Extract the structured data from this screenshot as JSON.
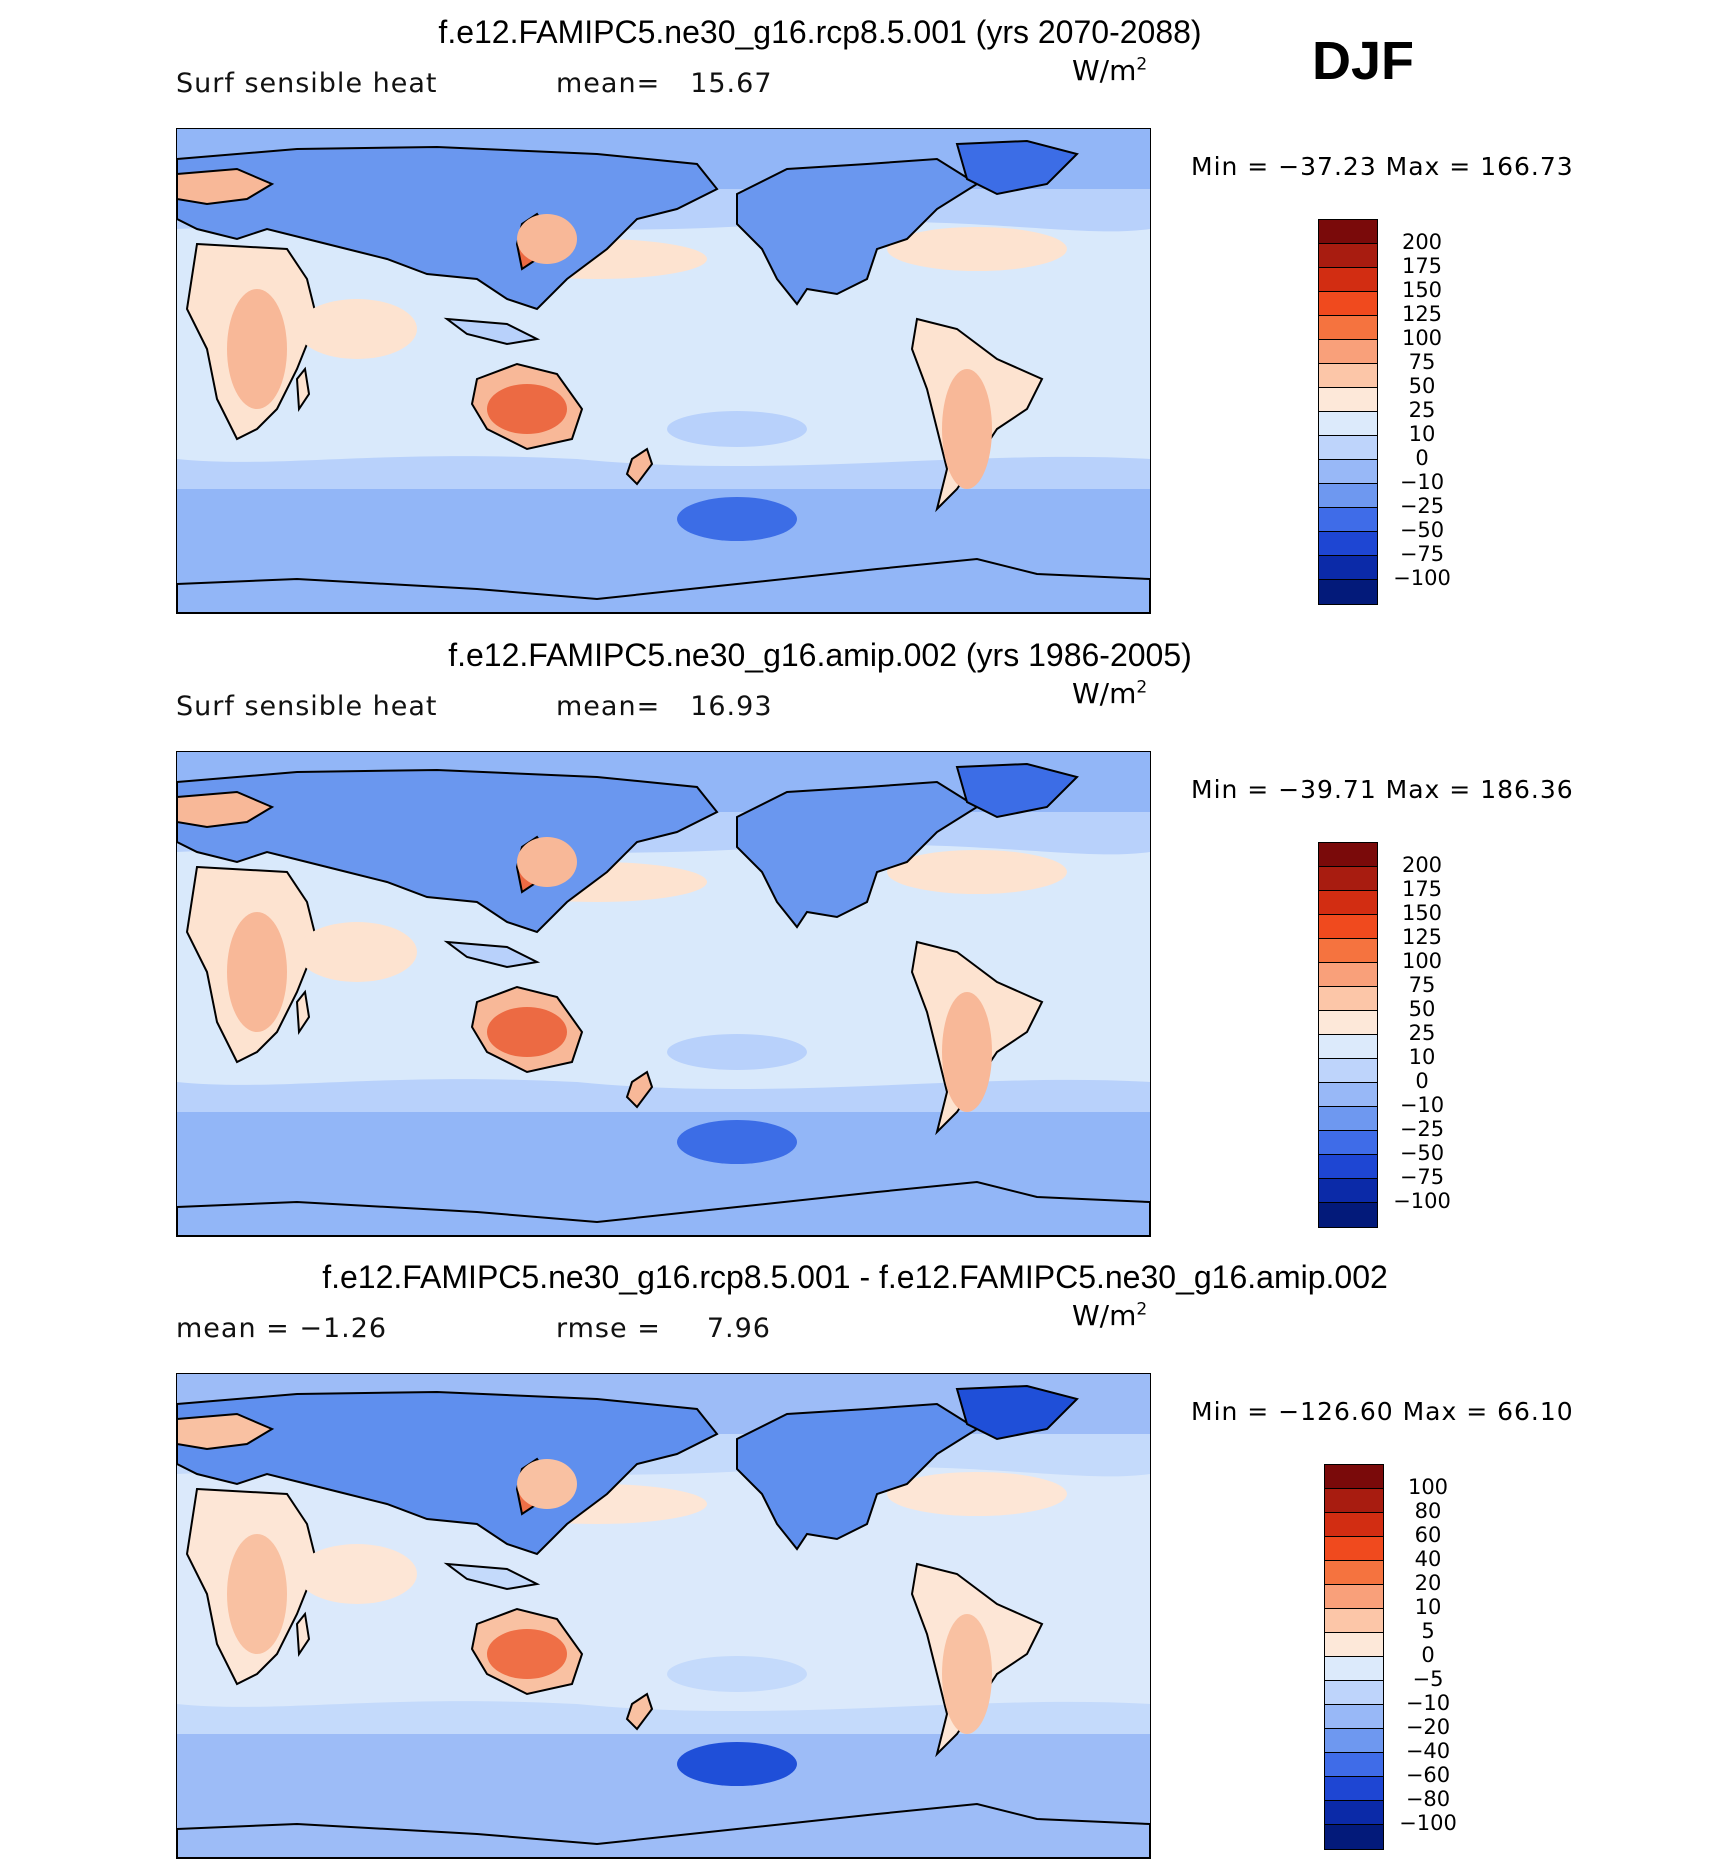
{
  "season": "DJF",
  "panels": [
    {
      "title": "f.e12.FAMIPC5.ne30_g16.rcp8.5.001 (yrs 2070-2088)",
      "left_label": "Surf  sensible  heat",
      "stat_label": "mean=",
      "stat_value": "15.67",
      "units_base": "W/m",
      "units_exp": "2",
      "minmax": "Min  =  −37.23  Max  =  166.73",
      "colorbar_labels": [
        "200",
        "175",
        "150",
        "125",
        "100",
        "75",
        "50",
        "25",
        "10",
        "0",
        "−10",
        "−25",
        "−50",
        "−75",
        "−100"
      ],
      "colors": {
        "ocean_low": "#d9e9fb",
        "ocean_mid": "#b8d1fb",
        "ocean_neg": "#92b6f7",
        "cold_land": "#6a97ef",
        "strong_neg": "#3c6de6",
        "warm": "#fde3d0",
        "warmer": "#f8b898",
        "hot": "#ec6a43"
      }
    },
    {
      "title": "f.e12.FAMIPC5.ne30_g16.amip.002 (yrs 1986-2005)",
      "left_label": "Surf  sensible  heat",
      "stat_label": "mean=",
      "stat_value": "16.93",
      "units_base": "W/m",
      "units_exp": "2",
      "minmax": "Min  =  −39.71  Max  =  186.36",
      "colorbar_labels": [
        "200",
        "175",
        "150",
        "125",
        "100",
        "75",
        "50",
        "25",
        "10",
        "0",
        "−10",
        "−25",
        "−50",
        "−75",
        "−100"
      ],
      "colors": {
        "ocean_low": "#d9e9fb",
        "ocean_mid": "#b8d1fb",
        "ocean_neg": "#92b6f7",
        "cold_land": "#6a97ef",
        "strong_neg": "#3c6de6",
        "warm": "#fde3d0",
        "warmer": "#f8b898",
        "hot": "#ec6a43"
      }
    },
    {
      "title": "f.e12.FAMIPC5.ne30_g16.rcp8.5.001 - f.e12.FAMIPC5.ne30_g16.amip.002",
      "left_label": "mean  =   −1.26",
      "stat_label": "rmse  =",
      "stat_value": "7.96",
      "units_base": "W/m",
      "units_exp": "2",
      "minmax": "Min  =  −126.60  Max  =    66.10",
      "colorbar_labels": [
        "100",
        "80",
        "60",
        "40",
        "20",
        "10",
        "5",
        "0",
        "−5",
        "−10",
        "−20",
        "−40",
        "−60",
        "−80",
        "−100"
      ],
      "colors": {
        "ocean_low": "#dbe9fb",
        "ocean_mid": "#c4dafb",
        "ocean_neg": "#9dbcf7",
        "cold_land": "#5f8fee",
        "strong_neg": "#1f4fd8",
        "warm": "#fde6d6",
        "warmer": "#f9c1a2",
        "hot": "#ef6f46"
      }
    }
  ],
  "colorbar_colors": [
    "#7a0a0a",
    "#a81c10",
    "#d22d12",
    "#f04a1e",
    "#f5733f",
    "#f9a07a",
    "#fcc6a8",
    "#fde8d9",
    "#dceafb",
    "#bed4fb",
    "#98b8f7",
    "#6e98f0",
    "#3f6ce8",
    "#1e46d3",
    "#0b2aa8",
    "#031a7a"
  ]
}
